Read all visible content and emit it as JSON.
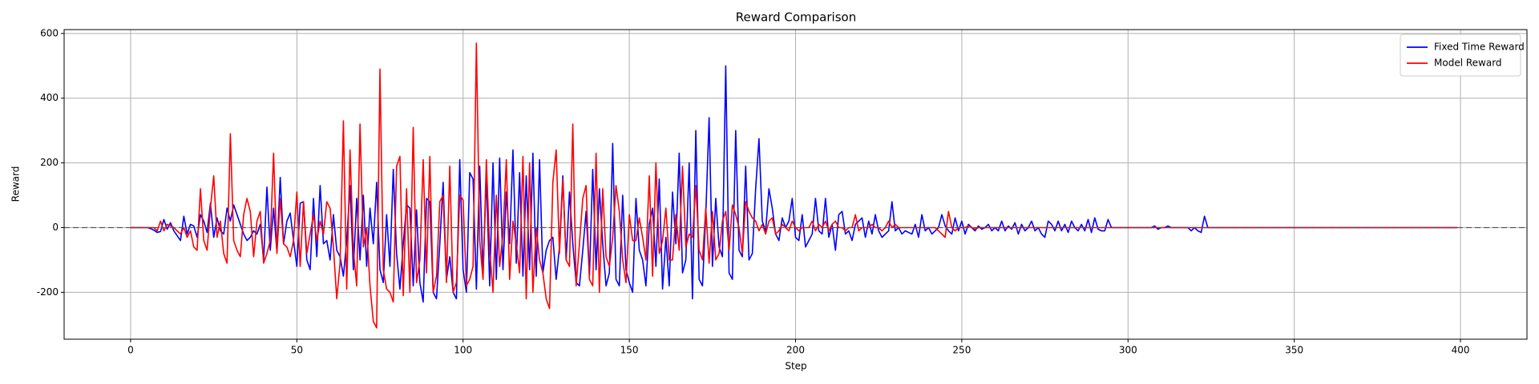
{
  "chart_data": {
    "type": "line",
    "title": "Reward Comparison",
    "x_label": "Step",
    "y_label": "Reward",
    "xlim": [
      -20,
      420
    ],
    "ylim": [
      -345,
      612
    ],
    "xticks": [
      0,
      50,
      100,
      150,
      200,
      250,
      300,
      350,
      400
    ],
    "yticks": [
      -200,
      0,
      200,
      400,
      600
    ],
    "grid": true,
    "legend": "upper-right",
    "hline": 0,
    "x": [
      0,
      1,
      2,
      3,
      4,
      5,
      6,
      7,
      8,
      9,
      10,
      11,
      12,
      13,
      14,
      15,
      16,
      17,
      18,
      19,
      20,
      21,
      22,
      23,
      24,
      25,
      26,
      27,
      28,
      29,
      30,
      31,
      32,
      33,
      34,
      35,
      36,
      37,
      38,
      39,
      40,
      41,
      42,
      43,
      44,
      45,
      46,
      47,
      48,
      49,
      50,
      51,
      52,
      53,
      54,
      55,
      56,
      57,
      58,
      59,
      60,
      61,
      62,
      63,
      64,
      65,
      66,
      67,
      68,
      69,
      70,
      71,
      72,
      73,
      74,
      75,
      76,
      77,
      78,
      79,
      80,
      81,
      82,
      83,
      84,
      85,
      86,
      87,
      88,
      89,
      90,
      91,
      92,
      93,
      94,
      95,
      96,
      97,
      98,
      99,
      100,
      101,
      102,
      103,
      104,
      105,
      106,
      107,
      108,
      109,
      110,
      111,
      112,
      113,
      114,
      115,
      116,
      117,
      118,
      119,
      120,
      121,
      122,
      123,
      124,
      125,
      126,
      127,
      128,
      129,
      130,
      131,
      132,
      133,
      134,
      135,
      136,
      137,
      138,
      139,
      140,
      141,
      142,
      143,
      144,
      145,
      146,
      147,
      148,
      149,
      150,
      151,
      152,
      153,
      154,
      155,
      156,
      157,
      158,
      159,
      160,
      161,
      162,
      163,
      164,
      165,
      166,
      167,
      168,
      169,
      170,
      171,
      172,
      173,
      174,
      175,
      176,
      177,
      178,
      179,
      180,
      181,
      182,
      183,
      184,
      185,
      186,
      187,
      188,
      189,
      190,
      191,
      192,
      193,
      194,
      195,
      196,
      197,
      198,
      199,
      200,
      201,
      202,
      203,
      204,
      205,
      206,
      207,
      208,
      209,
      210,
      211,
      212,
      213,
      214,
      215,
      216,
      217,
      218,
      219,
      220,
      221,
      222,
      223,
      224,
      225,
      226,
      227,
      228,
      229,
      230,
      231,
      232,
      233,
      234,
      235,
      236,
      237,
      238,
      239,
      240,
      241,
      242,
      243,
      244,
      245,
      246,
      247,
      248,
      249,
      250,
      251,
      252,
      253,
      254,
      255,
      256,
      257,
      258,
      259,
      260,
      261,
      262,
      263,
      264,
      265,
      266,
      267,
      268,
      269,
      270,
      271,
      272,
      273,
      274,
      275,
      276,
      277,
      278,
      279,
      280,
      281,
      282,
      283,
      284,
      285,
      286,
      287,
      288,
      289,
      290,
      291,
      292,
      293,
      294,
      295,
      296,
      297,
      298,
      299,
      300,
      301,
      302,
      303,
      304,
      305,
      306,
      307,
      308,
      309,
      310,
      311,
      312,
      313,
      314,
      315,
      316,
      317,
      318,
      319,
      320,
      321,
      322,
      323,
      324,
      325,
      326,
      327,
      328,
      329,
      330,
      331,
      332,
      333,
      334,
      335,
      336,
      337,
      338,
      339,
      340,
      341,
      342,
      343,
      344,
      345,
      346,
      347,
      348,
      349,
      350,
      351,
      352,
      353,
      354,
      355,
      356,
      357,
      358,
      359,
      360,
      361,
      362,
      363,
      364,
      365,
      366,
      367,
      368,
      369,
      370,
      371,
      372,
      373,
      374,
      375,
      376,
      377,
      378,
      379,
      380,
      381,
      382,
      383,
      384,
      385,
      386,
      387,
      388,
      389,
      390,
      391,
      392,
      393,
      394,
      395,
      396,
      397,
      398,
      399
    ],
    "series": [
      {
        "name": "Fixed Time Reward",
        "color": "#0000ff",
        "values": [
          0,
          0,
          0,
          0,
          0,
          0,
          -3,
          -8,
          -15,
          -12,
          25,
          -5,
          15,
          -10,
          -25,
          -40,
          35,
          -20,
          10,
          5,
          -30,
          40,
          20,
          -15,
          75,
          -30,
          30,
          -10,
          -20,
          60,
          20,
          70,
          40,
          10,
          -20,
          -40,
          -30,
          -10,
          -20,
          10,
          -100,
          125,
          -70,
          60,
          -75,
          155,
          -50,
          20,
          45,
          -40,
          -120,
          75,
          80,
          -100,
          -130,
          90,
          -90,
          130,
          -50,
          -40,
          -100,
          40,
          -70,
          -90,
          -150,
          -40,
          130,
          -130,
          90,
          -100,
          100,
          -120,
          60,
          -50,
          140,
          -130,
          -170,
          40,
          -120,
          180,
          -80,
          -190,
          -50,
          70,
          60,
          -180,
          55,
          -170,
          -230,
          90,
          80,
          -200,
          -220,
          -50,
          140,
          -160,
          -90,
          -200,
          -220,
          210,
          -130,
          -200,
          170,
          150,
          -190,
          190,
          -150,
          160,
          -180,
          200,
          -160,
          215,
          -130,
          110,
          -50,
          240,
          -110,
          170,
          -150,
          160,
          -130,
          230,
          -150,
          210,
          -140,
          -70,
          -40,
          -30,
          -160,
          -60,
          160,
          -100,
          110,
          -50,
          -170,
          -180,
          -70,
          50,
          -150,
          180,
          -130,
          120,
          -50,
          -180,
          -140,
          260,
          -160,
          -180,
          100,
          -130,
          -170,
          -200,
          90,
          -70,
          -100,
          -180,
          10,
          60,
          -120,
          150,
          -190,
          -30,
          -180,
          110,
          -50,
          230,
          -140,
          -100,
          200,
          -220,
          300,
          -160,
          -180,
          40,
          340,
          -120,
          90,
          -60,
          -90,
          500,
          -140,
          -160,
          300,
          -70,
          -90,
          190,
          -100,
          -80,
          120,
          275,
          20,
          -10,
          120,
          60,
          -20,
          -40,
          30,
          0,
          20,
          90,
          -30,
          -40,
          40,
          -60,
          -40,
          -20,
          90,
          -10,
          -20,
          90,
          -30,
          10,
          -70,
          40,
          50,
          -20,
          -10,
          -40,
          10,
          20,
          30,
          -30,
          20,
          -20,
          40,
          -10,
          -30,
          -20,
          -10,
          80,
          -10,
          0,
          -20,
          -10,
          -15,
          -20,
          10,
          -30,
          40,
          -10,
          0,
          -20,
          -10,
          0,
          40,
          5,
          -10,
          -20,
          30,
          -10,
          20,
          -20,
          10,
          0,
          -10,
          5,
          -5,
          0,
          10,
          -10,
          0,
          -10,
          20,
          -10,
          5,
          -5,
          15,
          -20,
          10,
          -10,
          0,
          20,
          -10,
          0,
          -20,
          -30,
          20,
          10,
          -10,
          20,
          -10,
          10,
          -15,
          20,
          0,
          -10,
          10,
          -10,
          25,
          -15,
          30,
          -5,
          -10,
          -10,
          25,
          0,
          0,
          0,
          0,
          0,
          0,
          0,
          0,
          0,
          0,
          0,
          0,
          0,
          5,
          -5,
          0,
          0,
          5,
          0,
          0,
          0,
          0,
          0,
          0,
          -10,
          0,
          -10,
          -15,
          35,
          0,
          0,
          0,
          0,
          0,
          0,
          0,
          0,
          0,
          0,
          0,
          0,
          0,
          0,
          0,
          0,
          0,
          0,
          0,
          0,
          0,
          0,
          0,
          0,
          0,
          0,
          0,
          0,
          0,
          0,
          0,
          0,
          0,
          0,
          0,
          0,
          0,
          0,
          0,
          0,
          0,
          0,
          0,
          0,
          0,
          0,
          0,
          0,
          0,
          0,
          0,
          0,
          0,
          0,
          0,
          0,
          0,
          0,
          0,
          0,
          0,
          0,
          0,
          0,
          0,
          0,
          0,
          0,
          0,
          0,
          0,
          0,
          0,
          0,
          0,
          0
        ]
      },
      {
        "name": "Model Reward",
        "color": "#ff0000",
        "values": [
          0,
          0,
          0,
          0,
          0,
          0,
          0,
          0,
          -10,
          20,
          -10,
          10,
          5,
          0,
          -10,
          -20,
          0,
          -30,
          -10,
          -60,
          -70,
          120,
          -40,
          -70,
          60,
          160,
          -30,
          20,
          -80,
          -110,
          290,
          -40,
          -70,
          -90,
          40,
          90,
          50,
          -90,
          20,
          50,
          -110,
          -80,
          -40,
          230,
          -80,
          90,
          -50,
          -60,
          -90,
          -40,
          110,
          -120,
          80,
          -80,
          -20,
          40,
          -40,
          20,
          -20,
          80,
          60,
          -60,
          -220,
          -110,
          330,
          -190,
          240,
          -70,
          -180,
          320,
          -60,
          0,
          -180,
          -290,
          -310,
          490,
          -130,
          -190,
          -200,
          -230,
          190,
          220,
          -210,
          120,
          -200,
          310,
          -170,
          -100,
          210,
          -140,
          220,
          -200,
          -150,
          80,
          100,
          -170,
          190,
          -200,
          -170,
          100,
          85,
          -180,
          -160,
          -120,
          570,
          -40,
          -160,
          210,
          -70,
          -200,
          100,
          -120,
          -20,
          210,
          -160,
          20,
          -50,
          -140,
          220,
          -220,
          200,
          -200,
          0,
          -100,
          -140,
          -220,
          -250,
          140,
          240,
          -80,
          150,
          -100,
          -120,
          320,
          -180,
          -50,
          90,
          130,
          -160,
          -180,
          230,
          -200,
          120,
          -90,
          -120,
          -30,
          130,
          50,
          -100,
          -170,
          40,
          -40,
          -40,
          30,
          -30,
          -100,
          160,
          -150,
          200,
          -80,
          -40,
          60,
          -100,
          -100,
          40,
          -70,
          190,
          -60,
          -20,
          -30,
          130,
          -70,
          -100,
          60,
          -110,
          50,
          -100,
          -80,
          20,
          50,
          -70,
          70,
          40,
          0,
          -80,
          80,
          50,
          30,
          20,
          -10,
          10,
          -20,
          20,
          30,
          -20,
          -10,
          10,
          0,
          -10,
          20,
          0,
          -10,
          0,
          0,
          0,
          20,
          -10,
          10,
          0,
          20,
          -10,
          10,
          20,
          0,
          0,
          -10,
          0,
          0,
          40,
          -10,
          0,
          0,
          0,
          10,
          0,
          0,
          -10,
          0,
          20,
          0,
          10,
          0,
          0,
          0,
          0,
          0,
          0,
          0,
          0,
          0,
          0,
          0,
          0,
          -10,
          -20,
          -30,
          50,
          0,
          -10,
          0,
          0,
          0,
          5,
          0,
          -5,
          0,
          0,
          0,
          0,
          0,
          0,
          0,
          0,
          0,
          0,
          0,
          0,
          0,
          0,
          0,
          0,
          0,
          0,
          0,
          0,
          0,
          0,
          0,
          0,
          0,
          0,
          0,
          0,
          0,
          0,
          0,
          0,
          0,
          0,
          0,
          0,
          0,
          0,
          0,
          0,
          0,
          0,
          0,
          0,
          0,
          0,
          0,
          0,
          0,
          0,
          0,
          0,
          0,
          0,
          0,
          0,
          0,
          0,
          0,
          0,
          0,
          0,
          0,
          0,
          0,
          0,
          0,
          0,
          0,
          0,
          0,
          0,
          0,
          0,
          0,
          0,
          0,
          0,
          0,
          0,
          0,
          0,
          0,
          0,
          0,
          0,
          0,
          0,
          0,
          0,
          0,
          0,
          0,
          0,
          0,
          0,
          0,
          0,
          0,
          0,
          0,
          0,
          0,
          0,
          0,
          0,
          0,
          0,
          0,
          0,
          0,
          0,
          0,
          0,
          0,
          0,
          0,
          0,
          0,
          0,
          0,
          0,
          0,
          0,
          0,
          0,
          0,
          0,
          0,
          0,
          0,
          0,
          0,
          0,
          0,
          0,
          0,
          0,
          0,
          0,
          0,
          0,
          0,
          0,
          0
        ]
      }
    ]
  }
}
